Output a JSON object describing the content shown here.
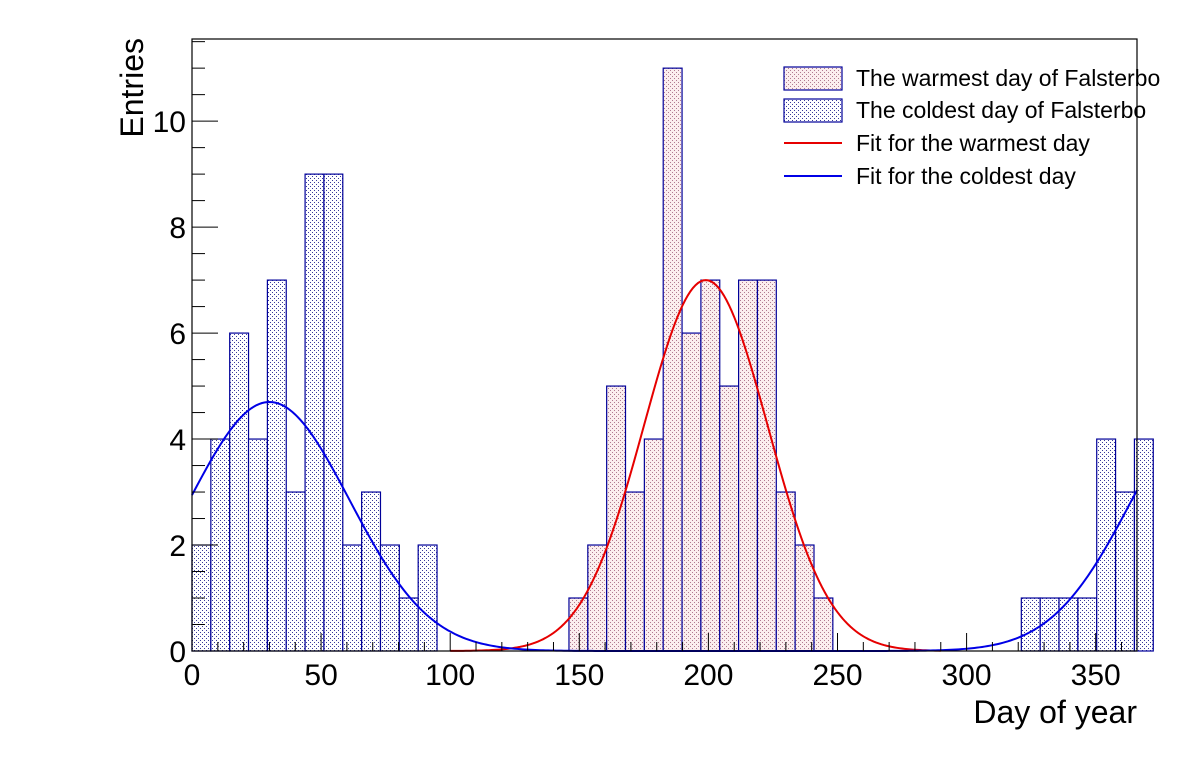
{
  "chart_data": {
    "type": "histogram",
    "xlabel": "Day of year",
    "ylabel": "Entries",
    "xlim": [
      0,
      366
    ],
    "ylim": [
      0,
      11.55
    ],
    "xticks": [
      0,
      50,
      100,
      150,
      200,
      250,
      300,
      350
    ],
    "yticks": [
      0,
      2,
      4,
      6,
      8,
      10
    ],
    "bin_width": 7.3,
    "legend_position": "top-right",
    "grid": false,
    "series": [
      {
        "name": "The coldest day of Falsterbo",
        "kind": "histogram",
        "color": "#000099",
        "counts": [
          2,
          4,
          6,
          4,
          7,
          3,
          9,
          9,
          2,
          3,
          2,
          1,
          2,
          0,
          0,
          0,
          0,
          0,
          0,
          0,
          0,
          0,
          0,
          0,
          0,
          0,
          0,
          0,
          0,
          0,
          0,
          0,
          0,
          0,
          0,
          0,
          0,
          0,
          0,
          0,
          0,
          0,
          0,
          0,
          1,
          1,
          1,
          1,
          4,
          3,
          4
        ]
      },
      {
        "name": "The warmest day of Falsterbo",
        "kind": "histogram",
        "color": "#000099",
        "counts": [
          0,
          0,
          0,
          0,
          0,
          0,
          0,
          0,
          0,
          0,
          0,
          0,
          0,
          0,
          0,
          0,
          0,
          0,
          0,
          0,
          1,
          2,
          5,
          3,
          4,
          11,
          6,
          7,
          5,
          7,
          7,
          3,
          2,
          1,
          0,
          0,
          0,
          0,
          0,
          0,
          0,
          0,
          0,
          0,
          0,
          0,
          0,
          0,
          0,
          0,
          0
        ]
      },
      {
        "name": "Fit for the warmest day",
        "kind": "fit",
        "color": "#e60000",
        "x_range": [
          100,
          290
        ],
        "amplitude": 7.0,
        "mean": 199,
        "sigma": 24
      },
      {
        "name": "Fit for the coldest day",
        "kind": "fit",
        "color": "#0000e6",
        "x_range": [
          0,
          366
        ],
        "amplitude": 4.7,
        "mean": 30,
        "sigma": 31,
        "periodic_shift": 365
      }
    ]
  }
}
